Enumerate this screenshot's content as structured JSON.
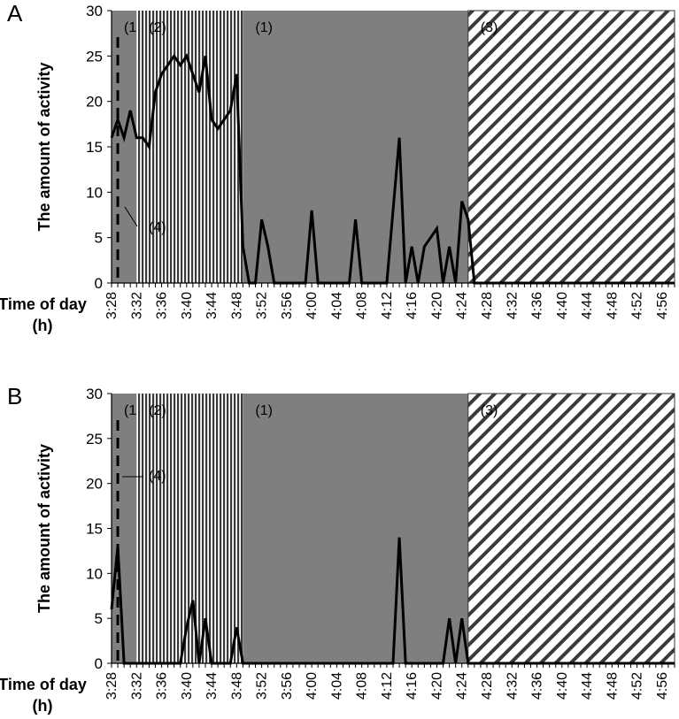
{
  "chart_data": [
    {
      "type": "line",
      "panel_label": "A",
      "ylabel": "The amount of activity",
      "xlabel": "Time of day (h)",
      "xlabel_lines": [
        "Time of day",
        "(h)"
      ],
      "ylim": [
        0,
        30
      ],
      "yticks": [
        0,
        5,
        10,
        15,
        20,
        25,
        30
      ],
      "x_minutes_range": [
        208,
        298
      ],
      "xtick_labels": [
        "3:28",
        "3:32",
        "3:36",
        "3:40",
        "3:44",
        "3:48",
        "3:52",
        "3:56",
        "4:00",
        "4:04",
        "4:08",
        "4:12",
        "4:16",
        "4:20",
        "4:24",
        "4:28",
        "4:32",
        "4:36",
        "4:40",
        "4:44",
        "4:48",
        "4:52",
        "4:56"
      ],
      "regions": [
        {
          "label": "(1)",
          "pattern": "gray",
          "start": "3:28",
          "end": "3:32"
        },
        {
          "label": "(2)",
          "pattern": "vertical-stripes",
          "start": "3:32",
          "end": "3:49"
        },
        {
          "label": "(1)",
          "pattern": "gray",
          "start": "3:49",
          "end": "4:25"
        },
        {
          "label": "(3)",
          "pattern": "diagonal-stripes",
          "start": "4:25",
          "end": "4:58"
        }
      ],
      "marker": {
        "label": "(4)",
        "time": "3:29"
      },
      "series": [
        {
          "name": "activity",
          "x": [
            "3:28",
            "3:29",
            "3:30",
            "3:31",
            "3:32",
            "3:33",
            "3:34",
            "3:35",
            "3:36",
            "3:37",
            "3:38",
            "3:39",
            "3:40",
            "3:41",
            "3:42",
            "3:43",
            "3:44",
            "3:45",
            "3:46",
            "3:47",
            "3:48",
            "3:49",
            "3:50",
            "3:51",
            "3:52",
            "3:53",
            "3:54",
            "3:55",
            "3:56",
            "3:57",
            "3:58",
            "3:59",
            "4:00",
            "4:01",
            "4:02",
            "4:03",
            "4:04",
            "4:05",
            "4:06",
            "4:07",
            "4:08",
            "4:09",
            "4:10",
            "4:11",
            "4:12",
            "4:13",
            "4:14",
            "4:15",
            "4:16",
            "4:17",
            "4:18",
            "4:19",
            "4:20",
            "4:21",
            "4:22",
            "4:23",
            "4:24",
            "4:25",
            "4:26",
            "4:27",
            "4:28",
            "4:29",
            "4:30",
            "4:31",
            "4:32",
            "4:33",
            "4:34",
            "4:35",
            "4:36",
            "4:37",
            "4:38",
            "4:39",
            "4:40",
            "4:41",
            "4:42",
            "4:43",
            "4:44",
            "4:45",
            "4:46",
            "4:47",
            "4:48",
            "4:49",
            "4:50",
            "4:51",
            "4:52",
            "4:53",
            "4:54",
            "4:55",
            "4:56",
            "4:57",
            "4:58"
          ],
          "values": [
            16,
            18,
            16,
            19,
            16,
            16,
            15,
            21,
            23,
            24,
            25,
            24,
            25,
            23,
            21,
            25,
            18,
            17,
            18,
            19,
            23,
            4,
            0,
            0,
            7,
            4,
            0,
            0,
            0,
            0,
            0,
            0,
            8,
            0,
            0,
            0,
            0,
            0,
            0,
            7,
            0,
            0,
            0,
            0,
            0,
            8,
            16,
            0,
            4,
            0,
            4,
            5,
            6,
            0,
            4,
            0,
            9,
            7,
            0,
            0,
            0,
            0,
            0,
            0,
            0,
            0,
            0,
            0,
            0,
            0,
            0,
            0,
            0,
            0,
            0,
            0,
            0,
            0,
            0,
            0,
            0,
            0,
            0,
            0,
            0,
            0,
            0,
            0,
            0,
            0,
            0
          ]
        }
      ]
    },
    {
      "type": "line",
      "panel_label": "B",
      "ylabel": "The amount of activity",
      "xlabel": "Time of day (h)",
      "xlabel_lines": [
        "Time of day",
        "(h)"
      ],
      "ylim": [
        0,
        30
      ],
      "yticks": [
        0,
        5,
        10,
        15,
        20,
        25,
        30
      ],
      "x_minutes_range": [
        208,
        298
      ],
      "xtick_labels": [
        "3:28",
        "3:32",
        "3:36",
        "3:40",
        "3:44",
        "3:48",
        "3:52",
        "3:56",
        "4:00",
        "4:04",
        "4:08",
        "4:12",
        "4:16",
        "4:20",
        "4:24",
        "4:28",
        "4:32",
        "4:36",
        "4:40",
        "4:44",
        "4:48",
        "4:52",
        "4:56"
      ],
      "regions": [
        {
          "label": "(1)",
          "pattern": "gray",
          "start": "3:28",
          "end": "3:32"
        },
        {
          "label": "(2)",
          "pattern": "vertical-stripes",
          "start": "3:32",
          "end": "3:49"
        },
        {
          "label": "(1)",
          "pattern": "gray",
          "start": "3:49",
          "end": "4:25"
        },
        {
          "label": "(3)",
          "pattern": "diagonal-stripes",
          "start": "4:25",
          "end": "4:58"
        }
      ],
      "marker": {
        "label": "(4)",
        "time": "3:29"
      },
      "series": [
        {
          "name": "activity",
          "x": [
            "3:28",
            "3:29",
            "3:30",
            "3:31",
            "3:32",
            "3:33",
            "3:34",
            "3:35",
            "3:36",
            "3:37",
            "3:38",
            "3:39",
            "3:40",
            "3:41",
            "3:42",
            "3:43",
            "3:44",
            "3:45",
            "3:46",
            "3:47",
            "3:48",
            "3:49",
            "3:50",
            "3:51",
            "3:52",
            "3:53",
            "3:54",
            "3:55",
            "3:56",
            "3:57",
            "3:58",
            "3:59",
            "4:00",
            "4:01",
            "4:02",
            "4:03",
            "4:04",
            "4:05",
            "4:06",
            "4:07",
            "4:08",
            "4:09",
            "4:10",
            "4:11",
            "4:12",
            "4:13",
            "4:14",
            "4:15",
            "4:16",
            "4:17",
            "4:18",
            "4:19",
            "4:20",
            "4:21",
            "4:22",
            "4:23",
            "4:24",
            "4:25",
            "4:26",
            "4:27",
            "4:28",
            "4:29",
            "4:30",
            "4:31",
            "4:32",
            "4:33",
            "4:34",
            "4:35",
            "4:36",
            "4:37",
            "4:38",
            "4:39",
            "4:40",
            "4:41",
            "4:42",
            "4:43",
            "4:44",
            "4:45",
            "4:46",
            "4:47",
            "4:48",
            "4:49",
            "4:50",
            "4:51",
            "4:52",
            "4:53",
            "4:54",
            "4:55",
            "4:56",
            "4:57",
            "4:58"
          ],
          "values": [
            6,
            13,
            0,
            0,
            0,
            0,
            0,
            0,
            0,
            0,
            0,
            0,
            4,
            7,
            0,
            5,
            0,
            0,
            0,
            0,
            4,
            0,
            0,
            0,
            0,
            0,
            0,
            0,
            0,
            0,
            0,
            0,
            0,
            0,
            0,
            0,
            0,
            0,
            0,
            0,
            0,
            0,
            0,
            0,
            0,
            0,
            14,
            0,
            0,
            0,
            0,
            0,
            0,
            0,
            5,
            0,
            5,
            0,
            0,
            0,
            0,
            0,
            0,
            0,
            0,
            0,
            0,
            0,
            0,
            0,
            0,
            0,
            0,
            0,
            0,
            0,
            0,
            0,
            0,
            0,
            0,
            0,
            0,
            0,
            0,
            0,
            0,
            0,
            0,
            0,
            0
          ]
        }
      ]
    }
  ],
  "style": {
    "gray_region": "#7f7f7f",
    "stripe_dark": "#3a3a3a",
    "stripe_light": "#ffffff",
    "line": "#000000",
    "axis": "#000000"
  }
}
